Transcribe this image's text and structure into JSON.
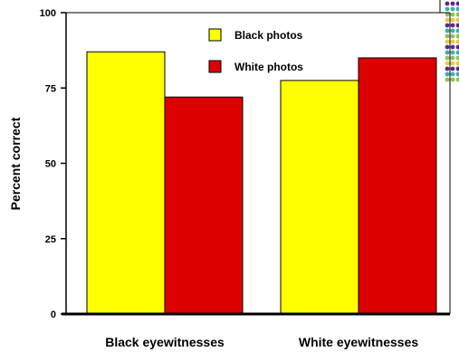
{
  "chart_data": {
    "type": "bar",
    "categories": [
      "Black eyewitnesses",
      "White eyewitnesses"
    ],
    "series": [
      {
        "name": "Black photos",
        "values": [
          87,
          77.5
        ],
        "color": "#ffff00"
      },
      {
        "name": "White photos",
        "values": [
          72,
          85
        ],
        "color": "#dd0000"
      }
    ],
    "ylabel": "Percent correct",
    "xlabel": "",
    "ylim": [
      0,
      100
    ],
    "yticks": [
      "0",
      "25",
      "50",
      "75",
      "100"
    ],
    "grid": false,
    "legend_position": "top-right"
  },
  "decoration": {
    "corner_dot_colors": [
      "#5b2a86",
      "#44aaaa",
      "#8fbf5a",
      "#e8c840"
    ]
  }
}
